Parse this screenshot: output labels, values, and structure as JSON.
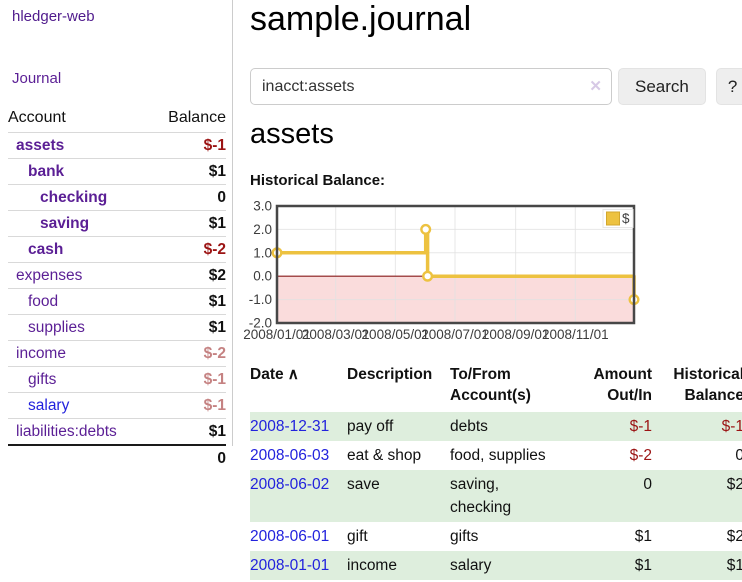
{
  "app": {
    "brand": "hledger-web",
    "nav_journal": "Journal"
  },
  "sidebar": {
    "columns": {
      "account": "Account",
      "balance": "Balance"
    },
    "accounts": [
      {
        "name": "assets",
        "balance": "$-1",
        "indent": 0,
        "bold": true,
        "balance_class": "neg",
        "link_color": "purple"
      },
      {
        "name": "bank",
        "balance": "$1",
        "indent": 1,
        "bold": true,
        "balance_class": "pos",
        "link_color": "purple"
      },
      {
        "name": "checking",
        "balance": "0",
        "indent": 2,
        "bold": true,
        "balance_class": "pos",
        "link_color": "purple"
      },
      {
        "name": "saving",
        "balance": "$1",
        "indent": 2,
        "bold": true,
        "balance_class": "pos",
        "link_color": "purple"
      },
      {
        "name": "cash",
        "balance": "$-2",
        "indent": 1,
        "bold": true,
        "balance_class": "neg",
        "link_color": "purple"
      },
      {
        "name": "expenses",
        "balance": "$2",
        "indent": 0,
        "bold": false,
        "balance_class": "pos",
        "link_color": "purple"
      },
      {
        "name": "food",
        "balance": "$1",
        "indent": 1,
        "bold": false,
        "balance_class": "pos",
        "link_color": "purple"
      },
      {
        "name": "supplies",
        "balance": "$1",
        "indent": 1,
        "bold": false,
        "balance_class": "pos",
        "link_color": "purple"
      },
      {
        "name": "income",
        "balance": "$-2",
        "indent": 0,
        "bold": false,
        "balance_class": "neg-muted",
        "link_color": "purple"
      },
      {
        "name": "gifts",
        "balance": "$-1",
        "indent": 1,
        "bold": false,
        "balance_class": "neg-muted",
        "link_color": "purple"
      },
      {
        "name": "salary",
        "balance": "$-1",
        "indent": 1,
        "bold": false,
        "balance_class": "neg-muted",
        "link_color": "blue"
      },
      {
        "name": "liabilities:debts",
        "balance": "$1",
        "indent": 0,
        "bold": false,
        "balance_class": "pos",
        "link_color": "purple"
      }
    ],
    "total": "0"
  },
  "header": {
    "title": "sample.journal"
  },
  "search": {
    "value": "inacct:assets",
    "clear_icon": "✕",
    "button": "Search",
    "help_button": "?"
  },
  "account_page": {
    "heading": "assets",
    "chart_label": "Historical Balance:"
  },
  "chart_data": {
    "type": "line",
    "step": true,
    "title": "Historical Balance:",
    "legend": [
      {
        "label": "$",
        "color": "#EDC240"
      }
    ],
    "legend_position": "top-right",
    "series": [
      {
        "name": "$",
        "color": "#EDC240",
        "points": [
          [
            "2008-01-01",
            1
          ],
          [
            "2008-06-01",
            2
          ],
          [
            "2008-06-03",
            0
          ],
          [
            "2008-12-31",
            -1
          ]
        ]
      }
    ],
    "x_domain": [
      "2008-01-01",
      "2008-12-31"
    ],
    "x_ticks": [
      "2008/01/01",
      "2008/03/01",
      "2008/05/01",
      "2008/07/01",
      "2008/09/01",
      "2008/11/01"
    ],
    "y_ticks": [
      3.0,
      2.0,
      1.0,
      0.0,
      -1.0,
      -2.0
    ],
    "ylim": [
      -2,
      3
    ],
    "grid": true,
    "negative_region_fill": "#fadcdc",
    "zero_line_color": "#8b1a1a",
    "border_color": "#474747"
  },
  "register": {
    "sort_icon": "∧",
    "columns": [
      {
        "label": "Date",
        "align": "left",
        "sorted": true
      },
      {
        "label": "Description",
        "align": "left"
      },
      {
        "label": "To/From Account(s)",
        "align": "left"
      },
      {
        "label": "Amount Out/In",
        "align": "right"
      },
      {
        "label": "Historical Balance",
        "align": "right"
      }
    ],
    "rows": [
      {
        "date": "2008-12-31",
        "description": "pay off",
        "accounts": "debts",
        "amount": "$-1",
        "balance": "$-1",
        "amount_class": "neg",
        "balance_class": "neg"
      },
      {
        "date": "2008-06-03",
        "description": "eat & shop",
        "accounts": "food, supplies",
        "amount": "$-2",
        "balance": "0",
        "amount_class": "neg",
        "balance_class": "pos"
      },
      {
        "date": "2008-06-02",
        "description": "save",
        "accounts": "saving,\nchecking",
        "amount": "0",
        "balance": "$2",
        "amount_class": "pos",
        "balance_class": "pos"
      },
      {
        "date": "2008-06-01",
        "description": "gift",
        "accounts": "gifts",
        "amount": "$1",
        "balance": "$2",
        "amount_class": "pos",
        "balance_class": "pos"
      },
      {
        "date": "2008-01-01",
        "description": "income",
        "accounts": "salary",
        "amount": "$1",
        "balance": "$1",
        "amount_class": "pos",
        "balance_class": "pos"
      }
    ]
  }
}
